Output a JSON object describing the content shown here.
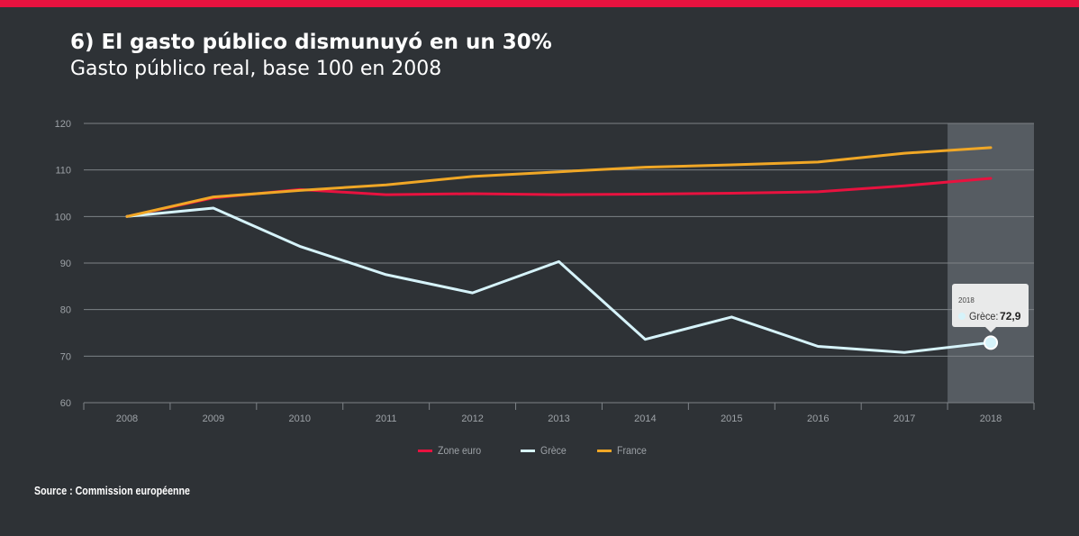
{
  "header": {
    "title": "6) El gasto público dismunuyó en un 30%",
    "subtitle": "Gasto público real, base 100 en 2008"
  },
  "colors": {
    "background": "#2e3236",
    "accent_bar": "#e8123f",
    "grid": "#7d8287",
    "highlight_band": "#565c62"
  },
  "chart_data": {
    "type": "line",
    "title": "6) El gasto público dismunuyó en un 30%",
    "subtitle": "Gasto público real, base 100 en 2008",
    "xlabel": "",
    "ylabel": "",
    "categories": [
      "2008",
      "2009",
      "2010",
      "2011",
      "2012",
      "2013",
      "2014",
      "2015",
      "2016",
      "2017",
      "2018"
    ],
    "ylim": [
      60,
      120
    ],
    "yticks": [
      60,
      70,
      80,
      90,
      100,
      110,
      120
    ],
    "grid": true,
    "legend_position": "bottom",
    "highlighted_category": "2018",
    "series": [
      {
        "name": "Zone euro",
        "color": "#e8123f",
        "values": [
          100,
          104,
          105.8,
          104.7,
          104.9,
          104.7,
          104.8,
          105,
          105.3,
          106.6,
          108.2
        ]
      },
      {
        "name": "Grèce",
        "color": "#d6f3fa",
        "values": [
          100,
          101.8,
          93.6,
          87.5,
          83.6,
          90.3,
          73.6,
          78.4,
          72.1,
          70.8,
          72.9
        ]
      },
      {
        "name": "France",
        "color": "#f0a726",
        "values": [
          100,
          104.2,
          105.6,
          106.8,
          108.6,
          109.6,
          110.6,
          111.1,
          111.7,
          113.6,
          114.8
        ]
      }
    ],
    "tooltip": {
      "year": "2018",
      "series": "Grèce",
      "label": "Grèce:",
      "value": "72,9"
    }
  },
  "footer": {
    "source": "Source : Commission européenne"
  }
}
